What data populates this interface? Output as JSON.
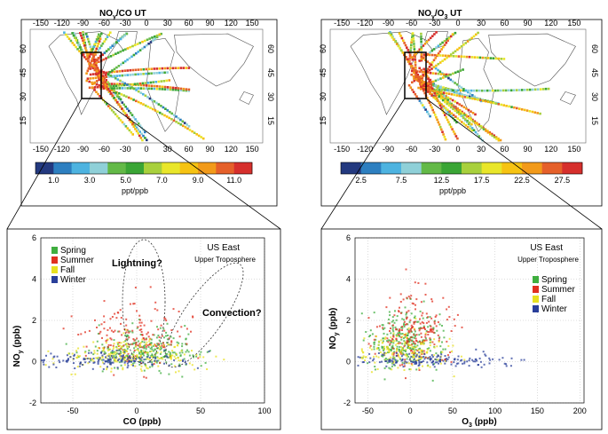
{
  "figure": {
    "colors": {
      "spring": "#3fae3f",
      "summer": "#e03020",
      "fall": "#e8e020",
      "winter": "#2a3f9a",
      "scale": [
        "#23397f",
        "#2d7fc0",
        "#4db3e0",
        "#8fd0d8",
        "#63b947",
        "#3aa535",
        "#a8d03c",
        "#e9e62a",
        "#f6c312",
        "#f29a1a",
        "#e5602a",
        "#d62f2c"
      ]
    },
    "maps": [
      {
        "title_main": "NO",
        "title_sub": "y",
        "title_rest": "/CO UT",
        "lon_ticks": [
          "-150",
          "-120",
          "-90",
          "-60",
          "-30",
          "0",
          "30",
          "60",
          "90",
          "120",
          "150"
        ],
        "lat_left": [
          "60",
          "45",
          "30",
          "15"
        ],
        "lat_right": [
          "60",
          "45",
          "30",
          "15"
        ],
        "colorbar_ticks": [
          "1.0",
          "3.0",
          "5.0",
          "7.0",
          "9.0",
          "11.0"
        ],
        "colorbar_unit": "ppt/ppb"
      },
      {
        "title_main": "NO",
        "title_sub": "y",
        "title_rest": "/O",
        "title_sub2": "3",
        "title_rest2": " UT",
        "lon_ticks": [
          "-150",
          "-120",
          "-90",
          "-60",
          "-30",
          "0",
          "30",
          "60",
          "90",
          "120",
          "150"
        ],
        "lat_left": [
          "60",
          "45",
          "30",
          "15"
        ],
        "lat_right": [
          "60",
          "45",
          "30",
          "15"
        ],
        "colorbar_ticks": [
          "2.5",
          "7.5",
          "12.5",
          "17.5",
          "22.5",
          "27.5"
        ],
        "colorbar_unit": "ppt/ppb"
      }
    ]
  },
  "chart_data": [
    {
      "type": "scatter",
      "region_label": "US East",
      "region_sub": "Upper Troposphere",
      "xlabel": "CO (ppb)",
      "ylabel_main": "NO",
      "ylabel_sub": "y",
      "ylabel_rest": " (ppb)",
      "xlim": [
        -75,
        100
      ],
      "ylim": [
        -2,
        6
      ],
      "xticks": [
        -50,
        0,
        50,
        100
      ],
      "yticks": [
        -2,
        0,
        2,
        4,
        6
      ],
      "legend": [
        "Spring",
        "Summer",
        "Fall",
        "Winter"
      ],
      "annotations": [
        "Lightning?",
        "Convection?"
      ],
      "series": [
        {
          "name": "Spring",
          "center": [
            5,
            0.2
          ],
          "spread": [
            22,
            0.6
          ],
          "points": 260
        },
        {
          "name": "Summer",
          "center": [
            0,
            0.7
          ],
          "spread": [
            20,
            1.1
          ],
          "points": 160
        },
        {
          "name": "Fall",
          "center": [
            -5,
            0.1
          ],
          "spread": [
            25,
            0.5
          ],
          "points": 200
        },
        {
          "name": "Winter",
          "center": [
            -20,
            0.0
          ],
          "spread": [
            30,
            0.25
          ],
          "points": 150
        }
      ]
    },
    {
      "type": "scatter",
      "region_label": "US East",
      "region_sub": "Upper Troposphere",
      "xlabel_main": "O",
      "xlabel_sub": "3",
      "xlabel_rest": " (ppb)",
      "ylabel_main": "NO",
      "ylabel_sub": "y",
      "ylabel_rest": " (ppb)",
      "xlim": [
        -65,
        205
      ],
      "ylim": [
        -2,
        6
      ],
      "xticks": [
        -50,
        0,
        50,
        100,
        150,
        200
      ],
      "yticks": [
        -2,
        0,
        2,
        4,
        6
      ],
      "legend": [
        "Spring",
        "Summer",
        "Fall",
        "Winter"
      ],
      "series": [
        {
          "name": "Spring",
          "center": [
            -10,
            0.5
          ],
          "spread": [
            22,
            0.9
          ],
          "points": 280
        },
        {
          "name": "Summer",
          "center": [
            5,
            0.9
          ],
          "spread": [
            22,
            1.2
          ],
          "points": 200
        },
        {
          "name": "Fall",
          "center": [
            -5,
            0.2
          ],
          "spread": [
            25,
            0.6
          ],
          "points": 160
        },
        {
          "name": "Winter",
          "center": [
            25,
            0.0
          ],
          "spread": [
            45,
            0.2
          ],
          "points": 160
        }
      ]
    }
  ]
}
